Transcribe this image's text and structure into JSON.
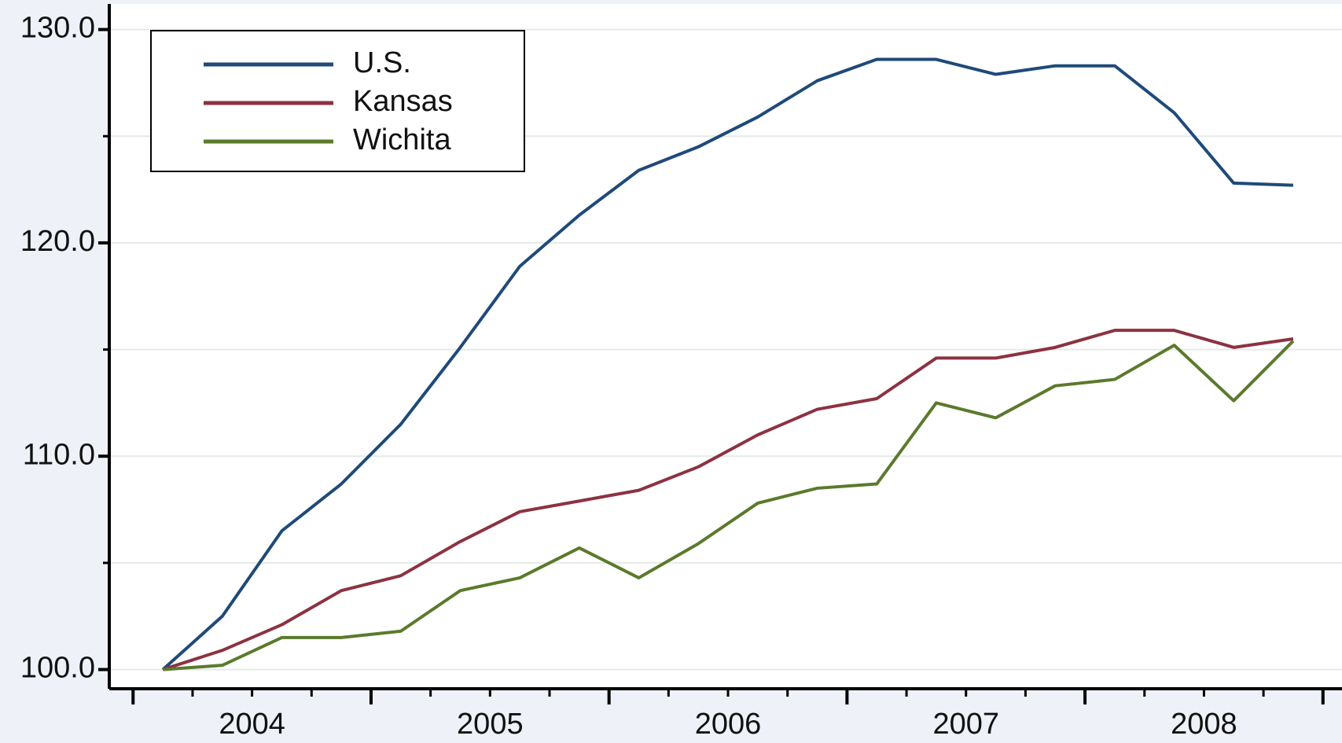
{
  "chart_data": {
    "type": "line",
    "x": [
      2004.125,
      2004.375,
      2004.625,
      2004.875,
      2005.125,
      2005.375,
      2005.625,
      2005.875,
      2006.125,
      2006.375,
      2006.625,
      2006.875,
      2007.125,
      2007.375,
      2007.625,
      2007.875,
      2008.125,
      2008.375,
      2008.625,
      2008.875
    ],
    "series": [
      {
        "name": "U.S.",
        "color": "#1f4a7a",
        "values": [
          100.0,
          102.5,
          106.5,
          108.7,
          111.5,
          115.1,
          118.9,
          121.3,
          123.4,
          124.5,
          125.9,
          127.6,
          128.6,
          128.6,
          127.9,
          128.3,
          128.3,
          126.1,
          122.8,
          122.7
        ]
      },
      {
        "name": "Kansas",
        "color": "#8c3242",
        "values": [
          100.0,
          100.9,
          102.1,
          103.7,
          104.4,
          106.0,
          107.4,
          107.9,
          108.4,
          109.5,
          111.0,
          112.2,
          112.7,
          114.6,
          114.6,
          115.1,
          115.9,
          115.9,
          115.1,
          115.5
        ]
      },
      {
        "name": "Wichita",
        "color": "#5b7a2c",
        "values": [
          100.0,
          100.2,
          101.5,
          101.5,
          101.8,
          103.7,
          104.3,
          105.7,
          104.3,
          105.9,
          107.8,
          108.5,
          108.7,
          112.5,
          111.8,
          113.3,
          113.6,
          115.2,
          112.6,
          115.4
        ]
      }
    ],
    "xlim": [
      2003.9,
      2009.08
    ],
    "xticks": [
      {
        "value": 2004.5,
        "label": "2004"
      },
      {
        "value": 2005.5,
        "label": "2005"
      },
      {
        "value": 2006.5,
        "label": "2006"
      },
      {
        "value": 2007.5,
        "label": "2007"
      },
      {
        "value": 2008.5,
        "label": "2008"
      }
    ],
    "xticks_major": [
      2004,
      2005,
      2006,
      2007,
      2008,
      2009
    ],
    "xticks_minor": [
      2004.25,
      2004.75,
      2005.25,
      2005.75,
      2006.25,
      2006.75,
      2007.25,
      2007.75,
      2008.25,
      2008.75
    ],
    "ylim": [
      99.1,
      131.2
    ],
    "yticks": [
      {
        "value": 100,
        "label": "100.0"
      },
      {
        "value": 110,
        "label": "110.0"
      },
      {
        "value": 120,
        "label": "120.0"
      },
      {
        "value": 130,
        "label": "130.0"
      }
    ],
    "yticks_minor": [
      105,
      115,
      125
    ],
    "grid": true,
    "legend": "upper left"
  }
}
